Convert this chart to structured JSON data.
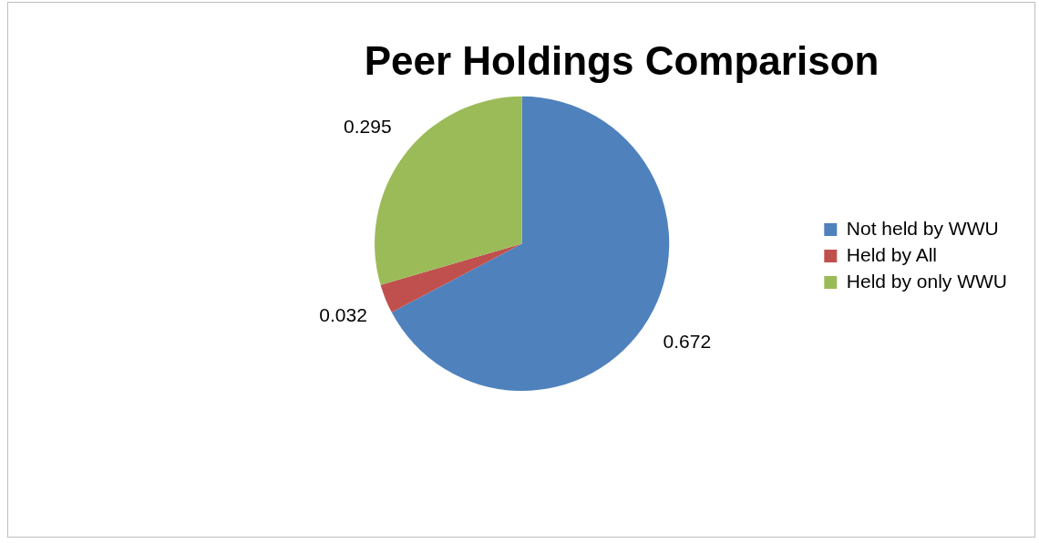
{
  "chart_data": {
    "type": "pie",
    "title": "Peer Holdings Comparison",
    "categories": [
      "Not held by WWU",
      "Held by All",
      "Held by only WWU"
    ],
    "values": [
      0.672,
      0.032,
      0.295
    ],
    "colors": [
      "#4f81bd",
      "#c0504d",
      "#9bbb59"
    ],
    "data_labels": true,
    "legend": "right"
  }
}
